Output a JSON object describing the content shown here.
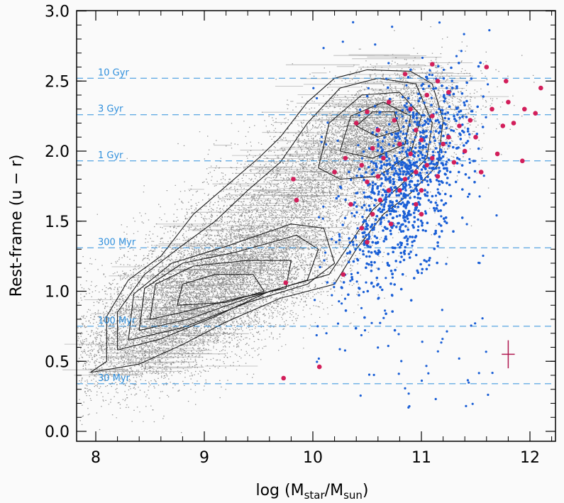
{
  "chart_data": {
    "type": "scatter",
    "title": "",
    "xlabel_main": "log (M",
    "xlabel_sub1": "star",
    "xlabel_mid": "/M",
    "xlabel_sub2": "sun",
    "xlabel_end": ")",
    "ylabel": "Rest-frame (u − r)",
    "xlim": [
      7.8,
      12.2
    ],
    "ylim": [
      -0.05,
      3.0
    ],
    "xticks": [
      "8",
      "9",
      "10",
      "11",
      "12"
    ],
    "yticks": [
      "0.0",
      "0.5",
      "1.0",
      "1.5",
      "2.0",
      "2.5",
      "3.0"
    ],
    "colors": {
      "background": "#fafafa",
      "grey_points": "#7d7d7d",
      "blue_points": "#1a5fd6",
      "red_points": "#d21e5a",
      "age_lines": "#2f8fdc",
      "contours": "#1a1a1a",
      "error_bar": "#b01850"
    },
    "age_lines": [
      {
        "label": "10 Gyr",
        "y": 2.52
      },
      {
        "label": "3 Gyr",
        "y": 2.26
      },
      {
        "label": "1 Gyr",
        "y": 1.93
      },
      {
        "label": "300 Myr",
        "y": 1.31
      },
      {
        "label": "100 Myr",
        "y": 0.75
      },
      {
        "label": "30 Myr",
        "y": 0.34
      }
    ],
    "contours": [
      {
        "level": 1,
        "points": [
          [
            7.95,
            0.42
          ],
          [
            8.1,
            0.5
          ],
          [
            8.1,
            0.82
          ],
          [
            8.3,
            1.08
          ],
          [
            8.6,
            1.25
          ],
          [
            8.9,
            1.55
          ],
          [
            9.2,
            1.75
          ],
          [
            9.5,
            1.95
          ],
          [
            9.7,
            2.1
          ],
          [
            9.95,
            2.35
          ],
          [
            10.2,
            2.52
          ],
          [
            10.5,
            2.58
          ],
          [
            10.9,
            2.57
          ],
          [
            11.1,
            2.48
          ],
          [
            11.2,
            2.22
          ],
          [
            11.15,
            1.9
          ],
          [
            10.9,
            1.7
          ],
          [
            10.65,
            1.55
          ],
          [
            10.4,
            1.3
          ],
          [
            10.2,
            1.05
          ],
          [
            9.7,
            0.95
          ],
          [
            9.2,
            0.78
          ],
          [
            8.8,
            0.62
          ],
          [
            8.4,
            0.48
          ],
          [
            7.95,
            0.42
          ]
        ]
      },
      {
        "level": 2,
        "points": [
          [
            8.2,
            0.58
          ],
          [
            8.2,
            0.85
          ],
          [
            8.45,
            1.12
          ],
          [
            8.75,
            1.3
          ],
          [
            9.1,
            1.5
          ],
          [
            9.4,
            1.72
          ],
          [
            9.7,
            1.92
          ],
          [
            9.95,
            2.2
          ],
          [
            10.25,
            2.45
          ],
          [
            10.6,
            2.52
          ],
          [
            10.95,
            2.48
          ],
          [
            11.1,
            2.2
          ],
          [
            11.05,
            1.95
          ],
          [
            10.8,
            1.75
          ],
          [
            10.55,
            1.58
          ],
          [
            10.35,
            1.35
          ],
          [
            10.15,
            1.12
          ],
          [
            9.6,
            1.0
          ],
          [
            9.1,
            0.82
          ],
          [
            8.6,
            0.66
          ],
          [
            8.2,
            0.58
          ]
        ]
      },
      {
        "level": 3,
        "points": [
          [
            8.3,
            0.65
          ],
          [
            8.35,
            0.98
          ],
          [
            8.7,
            1.2
          ],
          [
            9.2,
            1.32
          ],
          [
            9.8,
            1.48
          ],
          [
            10.1,
            1.45
          ],
          [
            10.2,
            1.2
          ],
          [
            9.95,
            1.05
          ],
          [
            9.4,
            0.92
          ],
          [
            8.8,
            0.74
          ],
          [
            8.3,
            0.65
          ]
        ]
      },
      {
        "level": 4,
        "points": [
          [
            8.4,
            0.72
          ],
          [
            8.45,
            1.02
          ],
          [
            8.8,
            1.2
          ],
          [
            9.3,
            1.28
          ],
          [
            9.85,
            1.4
          ],
          [
            10.05,
            1.3
          ],
          [
            9.95,
            1.08
          ],
          [
            9.4,
            0.95
          ],
          [
            8.85,
            0.8
          ],
          [
            8.4,
            0.72
          ]
        ]
      },
      {
        "level": 5,
        "points": [
          [
            8.5,
            0.8
          ],
          [
            8.55,
            1.05
          ],
          [
            8.9,
            1.18
          ],
          [
            9.4,
            1.22
          ],
          [
            9.8,
            1.22
          ],
          [
            9.75,
            1.02
          ],
          [
            9.3,
            0.95
          ],
          [
            8.8,
            0.85
          ],
          [
            8.5,
            0.8
          ]
        ]
      },
      {
        "level": 6,
        "points": [
          [
            8.75,
            0.9
          ],
          [
            8.8,
            1.05
          ],
          [
            9.1,
            1.12
          ],
          [
            9.45,
            1.12
          ],
          [
            9.55,
            1.0
          ],
          [
            9.2,
            0.92
          ],
          [
            8.75,
            0.9
          ]
        ]
      },
      {
        "level": 7,
        "points": [
          [
            10.05,
            1.88
          ],
          [
            10.15,
            2.2
          ],
          [
            10.45,
            2.4
          ],
          [
            10.8,
            2.42
          ],
          [
            11.0,
            2.25
          ],
          [
            10.9,
            1.98
          ],
          [
            10.6,
            1.82
          ],
          [
            10.25,
            1.8
          ],
          [
            10.05,
            1.88
          ]
        ]
      },
      {
        "level": 8,
        "points": [
          [
            10.25,
            2.0
          ],
          [
            10.35,
            2.25
          ],
          [
            10.65,
            2.35
          ],
          [
            10.9,
            2.25
          ],
          [
            10.85,
            2.05
          ],
          [
            10.55,
            1.95
          ],
          [
            10.25,
            2.0
          ]
        ]
      },
      {
        "level": 9,
        "points": [
          [
            10.4,
            2.18
          ],
          [
            10.55,
            2.28
          ],
          [
            10.75,
            2.28
          ],
          [
            10.8,
            2.15
          ],
          [
            10.6,
            2.1
          ],
          [
            10.4,
            2.18
          ]
        ]
      }
    ],
    "red_points": [
      [
        9.73,
        0.38
      ],
      [
        10.06,
        0.46
      ],
      [
        9.75,
        1.06
      ],
      [
        10.28,
        1.12
      ],
      [
        10.55,
        1.55
      ],
      [
        10.62,
        1.65
      ],
      [
        10.72,
        1.48
      ],
      [
        10.8,
        1.72
      ],
      [
        10.85,
        1.8
      ],
      [
        10.95,
        1.85
      ],
      [
        11.0,
        1.72
      ],
      [
        11.05,
        1.9
      ],
      [
        11.1,
        1.95
      ],
      [
        11.15,
        1.82
      ],
      [
        11.2,
        2.05
      ],
      [
        11.25,
        2.1
      ],
      [
        11.3,
        1.92
      ],
      [
        11.35,
        2.18
      ],
      [
        11.4,
        2.0
      ],
      [
        11.45,
        2.22
      ],
      [
        11.5,
        2.1
      ],
      [
        11.55,
        1.85
      ],
      [
        11.6,
        2.6
      ],
      [
        11.65,
        2.3
      ],
      [
        11.7,
        1.98
      ],
      [
        11.75,
        2.18
      ],
      [
        11.78,
        2.5
      ],
      [
        11.8,
        2.35
      ],
      [
        11.85,
        2.2
      ],
      [
        11.95,
        2.3
      ],
      [
        11.93,
        1.93
      ],
      [
        12.05,
        2.27
      ],
      [
        12.1,
        2.45
      ],
      [
        10.4,
        2.2
      ],
      [
        10.5,
        2.28
      ],
      [
        10.6,
        2.15
      ],
      [
        10.7,
        2.35
      ],
      [
        10.75,
        2.22
      ],
      [
        10.9,
        2.3
      ],
      [
        10.95,
        2.15
      ],
      [
        11.05,
        2.4
      ],
      [
        11.1,
        2.25
      ],
      [
        10.45,
        1.9
      ],
      [
        10.55,
        2.02
      ],
      [
        10.65,
        1.95
      ],
      [
        10.8,
        2.05
      ],
      [
        10.9,
        1.98
      ],
      [
        10.5,
        1.78
      ],
      [
        10.6,
        1.82
      ],
      [
        10.7,
        1.72
      ],
      [
        11.0,
        2.08
      ],
      [
        11.15,
        2.5
      ],
      [
        11.25,
        2.42
      ],
      [
        10.2,
        1.85
      ],
      [
        10.3,
        1.95
      ],
      [
        9.85,
        1.65
      ],
      [
        9.82,
        1.8
      ],
      [
        10.35,
        1.62
      ],
      [
        10.45,
        1.45
      ],
      [
        10.5,
        1.35
      ],
      [
        10.95,
        1.62
      ],
      [
        11.0,
        1.55
      ],
      [
        10.85,
        2.55
      ],
      [
        11.1,
        2.62
      ]
    ],
    "error_bar": {
      "x": 11.8,
      "y": 0.55,
      "dx": 0.06,
      "dy": 0.1
    }
  }
}
